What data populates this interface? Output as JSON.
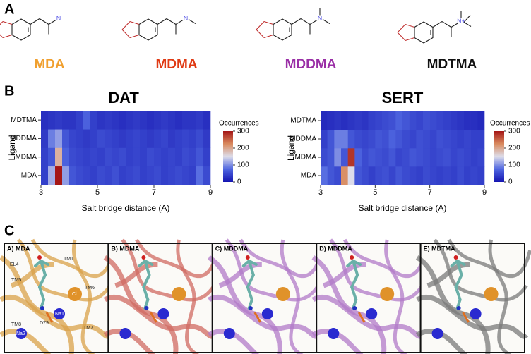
{
  "panel_labels": [
    "A",
    "B",
    "C"
  ],
  "molecules": [
    {
      "name": "MDA",
      "color": "#f0a030",
      "atom": "N",
      "methyls": 0
    },
    {
      "name": "MDMA",
      "color": "#e03a14",
      "atom": "N",
      "methyls": 1
    },
    {
      "name": "MDDMA",
      "color": "#9a2fa6",
      "atom": "N",
      "methyls": 2
    },
    {
      "name": "MDTMA",
      "color": "#111111",
      "atom": "N+",
      "methyls": 3
    }
  ],
  "chart_data": [
    {
      "type": "heatmap",
      "title": "DAT",
      "xlabel": "Salt bridge distance (A)",
      "ylabel": "Ligand",
      "colorbar_label": "Occurrences",
      "categories": [
        "MDA",
        "MDMA",
        "MDDMA",
        "MDTMA"
      ],
      "bins": [
        3,
        3.25,
        3.5,
        3.75,
        4,
        4.25,
        4.5,
        4.75,
        5,
        5.25,
        5.5,
        5.75,
        6,
        6.25,
        6.5,
        6.75,
        7,
        7.25,
        7.5,
        7.75,
        8,
        8.25,
        8.5,
        8.75,
        9
      ],
      "z": [
        [
          40,
          120,
          300,
          110,
          60,
          50,
          45,
          40,
          50,
          45,
          55,
          40,
          45,
          50,
          40,
          45,
          50,
          40,
          45,
          50,
          45,
          40,
          80,
          50
        ],
        [
          40,
          60,
          190,
          70,
          50,
          45,
          40,
          45,
          40,
          50,
          45,
          50,
          40,
          45,
          40,
          50,
          45,
          40,
          45,
          40,
          50,
          45,
          60,
          40
        ],
        [
          35,
          90,
          110,
          60,
          45,
          40,
          35,
          40,
          50,
          45,
          40,
          35,
          40,
          45,
          40,
          35,
          40,
          45,
          35,
          40,
          45,
          40,
          50,
          35
        ],
        [
          25,
          30,
          35,
          30,
          30,
          40,
          70,
          40,
          30,
          35,
          30,
          25,
          30,
          35,
          30,
          25,
          30,
          35,
          30,
          25,
          30,
          30,
          35,
          25
        ]
      ],
      "xlim": [
        3,
        9
      ],
      "xticks": [
        3,
        5,
        7,
        9
      ],
      "zlim": [
        0,
        300
      ],
      "zticks": [
        0,
        100,
        200,
        300
      ],
      "colormap": [
        "#1414b0",
        "#4f66e0",
        "#dcdcea",
        "#d98a5e",
        "#a51616"
      ]
    },
    {
      "type": "heatmap",
      "title": "SERT",
      "xlabel": "Salt bridge distance (A)",
      "ylabel": "Ligand",
      "colorbar_label": "Occurrences",
      "categories": [
        "MDA",
        "MDMA",
        "MDDMA",
        "MDTMA"
      ],
      "bins": [
        3,
        3.25,
        3.5,
        3.75,
        4,
        4.25,
        4.5,
        4.75,
        5,
        5.25,
        5.5,
        5.75,
        6,
        6.25,
        6.5,
        6.75,
        7,
        7.25,
        7.5,
        7.75,
        8,
        8.25,
        8.5,
        8.75,
        9
      ],
      "z": [
        [
          80,
          60,
          50,
          220,
          150,
          60,
          50,
          40,
          50,
          55,
          45,
          60,
          50,
          45,
          40,
          50,
          45,
          40,
          45,
          40,
          50,
          40,
          45,
          40
        ],
        [
          50,
          60,
          100,
          60,
          280,
          70,
          50,
          60,
          55,
          50,
          60,
          45,
          50,
          60,
          55,
          50,
          45,
          50,
          55,
          45,
          50,
          45,
          40,
          45
        ],
        [
          40,
          60,
          90,
          90,
          60,
          50,
          45,
          50,
          60,
          55,
          70,
          60,
          50,
          45,
          55,
          50,
          45,
          55,
          50,
          45,
          40,
          45,
          40,
          40
        ],
        [
          20,
          25,
          30,
          25,
          30,
          35,
          30,
          40,
          45,
          50,
          55,
          70,
          60,
          50,
          45,
          55,
          50,
          45,
          40,
          35,
          30,
          25,
          25,
          20
        ]
      ],
      "xlim": [
        3,
        9
      ],
      "xticks": [
        3,
        5,
        7,
        9
      ],
      "zlim": [
        0,
        300
      ],
      "zticks": [
        0,
        100,
        200,
        300
      ],
      "colormap": [
        "#1414b0",
        "#4f66e0",
        "#dcdcea",
        "#d98a5e",
        "#a51616"
      ]
    }
  ],
  "panels": [
    {
      "label": "A) MDA",
      "color": "#d9a24a"
    },
    {
      "label": "B) MDMA",
      "color": "#d06a62"
    },
    {
      "label": "C) MDDMA",
      "color": "#b27ac8"
    },
    {
      "label": "D) MDDMA",
      "color": "#b27ac8"
    },
    {
      "label": "E) MDTMA",
      "color": "#7a7a7a"
    }
  ],
  "annotations": [
    "EL4",
    "TM1",
    "TM5",
    "TM6",
    "Cl",
    "Na1",
    "D79",
    "TM8",
    "Na2",
    "TM7"
  ]
}
